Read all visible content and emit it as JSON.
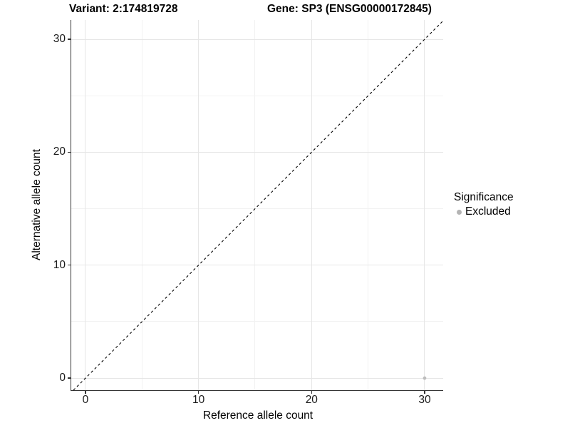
{
  "title": {
    "variant": "Variant: 2:174819728",
    "gene": "Gene: SP3 (ENSG00000172845)"
  },
  "chart_data": {
    "type": "scatter",
    "xlabel": "Reference allele count",
    "ylabel": "Alternative allele count",
    "xlim": [
      -1.26,
      31.64
    ],
    "ylim": [
      -1.07,
      31.71
    ],
    "x_ticks": [
      0,
      10,
      20,
      30
    ],
    "y_ticks": [
      0,
      10,
      20,
      30
    ],
    "x_minor_ticks": [
      5,
      15,
      25
    ],
    "y_minor_ticks": [
      5,
      15,
      25
    ],
    "grid": true,
    "identity_line": {
      "style": "dashed",
      "color": "#000000",
      "from": -1.07,
      "to": 31.64
    },
    "series": [
      {
        "name": "Excluded",
        "color": "#bdbdbd",
        "points": [
          {
            "x": 30,
            "y": 0
          }
        ],
        "point_radius": 2.4
      }
    ],
    "legend": {
      "title": "Significance",
      "position": "right",
      "items": [
        {
          "label": "Excluded",
          "color": "#b4b4b4"
        }
      ]
    }
  },
  "colors": {
    "background": "#ffffff",
    "axis_line": "#333333",
    "grid_major": "#e6e6e6",
    "grid_minor": "#f2f2f2",
    "text": "#000000"
  }
}
